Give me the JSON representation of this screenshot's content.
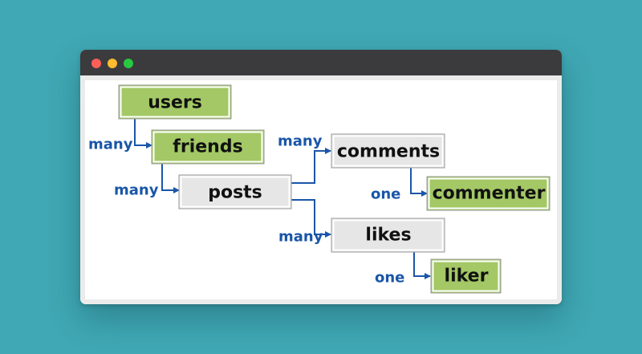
{
  "window": {
    "controls": [
      {
        "name": "close-button",
        "color": "#fe5f57"
      },
      {
        "name": "minimize-button",
        "color": "#febc2e"
      },
      {
        "name": "maximize-button",
        "color": "#28c840"
      }
    ]
  },
  "colors": {
    "green_node": "#a3c865",
    "gray_node": "#e6e6e6",
    "edge": "#1a56a8"
  },
  "nodes": {
    "users": "users",
    "friends": "friends",
    "posts": "posts",
    "comments": "comments",
    "commenter": "commenter",
    "likes": "likes",
    "liker": "liker"
  },
  "edges": {
    "users_friends": "many",
    "friends_posts": "many",
    "posts_comments": "many",
    "posts_likes": "many",
    "comments_commenter": "one",
    "likes_liker": "one"
  }
}
